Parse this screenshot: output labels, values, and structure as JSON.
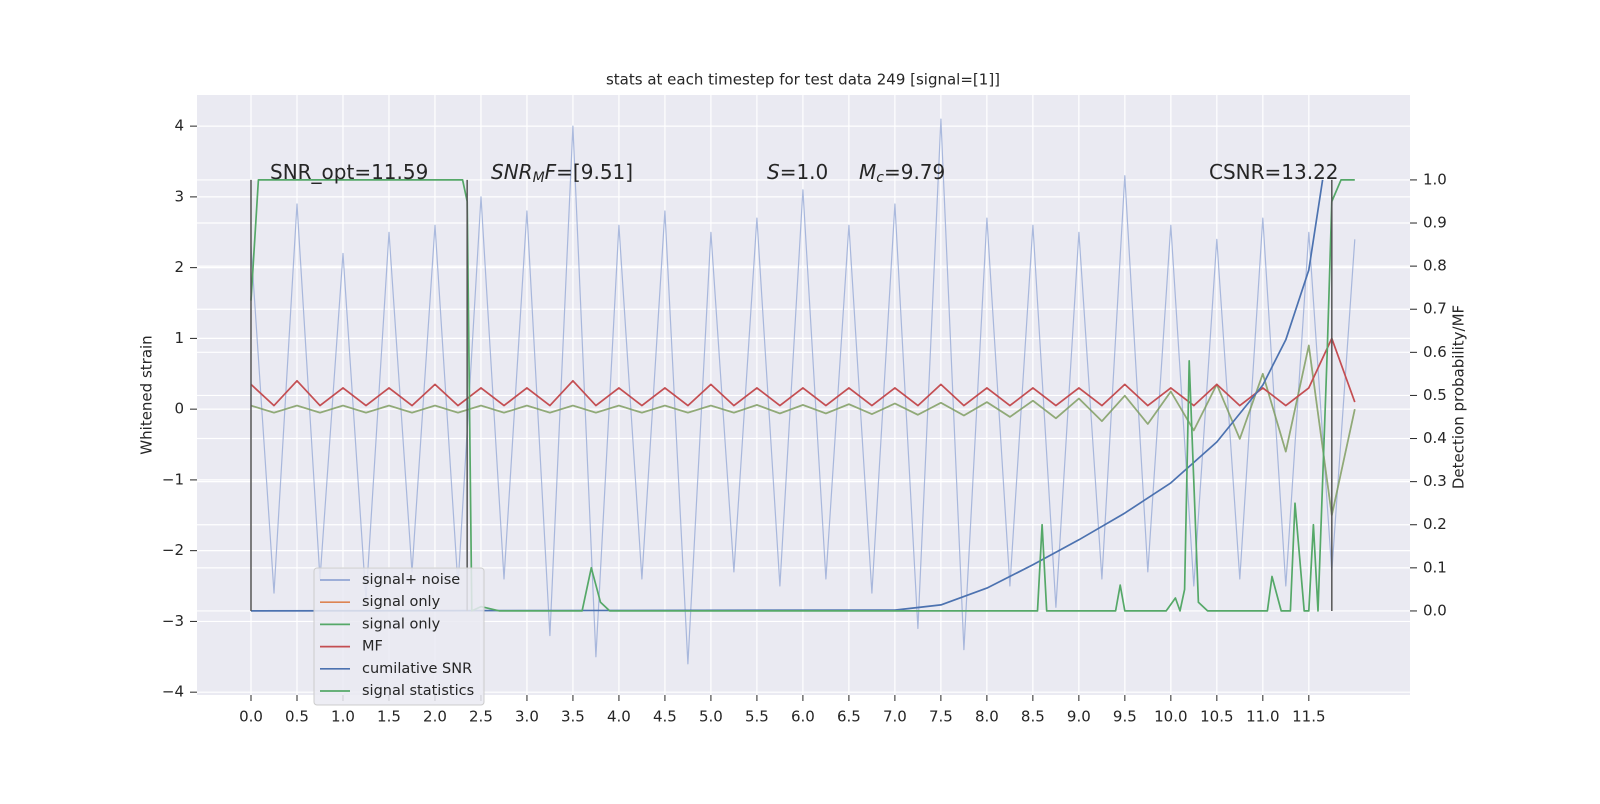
{
  "chart_data": {
    "type": "line",
    "title": "stats at each timestep for test data 249 [signal=[1]]",
    "ylabel": "Whitened strain",
    "y2label": "Detection probability/MF",
    "xlim": [
      -0.587,
      12.6
    ],
    "ylim": [
      -4.04,
      4.44
    ],
    "y2lim": [
      -0.195,
      1.197
    ],
    "grid": true,
    "legend": "lower left",
    "xticks": [
      {
        "value": 0,
        "label": "0.0"
      },
      0.5,
      {
        "value": 1,
        "label": "1.0"
      },
      1.5,
      {
        "value": 2,
        "label": "2.0"
      },
      2.5,
      {
        "value": 3,
        "label": "3.0"
      },
      3.5,
      {
        "value": 4,
        "label": "4.0"
      },
      4.5,
      {
        "value": 5,
        "label": "5.0"
      },
      5.5,
      {
        "value": 6,
        "label": "6.0"
      },
      6.5,
      {
        "value": 7,
        "label": "7.0"
      },
      7.5,
      {
        "value": 8,
        "label": "8.0"
      },
      8.5,
      {
        "value": 9,
        "label": "9.0"
      },
      9.5,
      {
        "value": 10,
        "label": "10.0"
      },
      10.5,
      {
        "value": 11,
        "label": "11.0"
      },
      11.5
    ],
    "yticks": [
      {
        "value": -4,
        "label": "−4"
      },
      {
        "value": -3,
        "label": "−3"
      },
      {
        "value": -2,
        "label": "−2"
      },
      {
        "value": -1,
        "label": "−1"
      },
      0,
      1,
      2,
      3,
      4
    ],
    "y2ticks": [
      {
        "value": 0,
        "label": "0.0"
      },
      0.1,
      0.2,
      0.3,
      0.4,
      0.5,
      0.6,
      0.7,
      0.8,
      0.9,
      {
        "value": 1,
        "label": "1.0"
      }
    ],
    "vlines": {
      "color": "#555555",
      "x": [
        0,
        2.35,
        11.75
      ]
    },
    "annotations": [
      {
        "parts": [
          {
            "text": "SNR_opt=11.59"
          }
        ]
      },
      {
        "parts": [
          {
            "text": "SNR",
            "italic": true
          },
          {
            "text": "M",
            "italic": true,
            "sub": true
          },
          {
            "text": "F",
            "italic": true
          },
          {
            "text": "=[9.51]"
          }
        ]
      },
      {
        "parts": [
          {
            "text": "S",
            "italic": true
          },
          {
            "text": "=1.0"
          }
        ]
      },
      {
        "parts": [
          {
            "text": "M",
            "italic": true
          },
          {
            "text": "c",
            "italic": true,
            "sub": true
          },
          {
            "text": "=9.79"
          }
        ]
      },
      {
        "parts": [
          {
            "text": "CSNR=13.22"
          }
        ]
      }
    ],
    "series": [
      {
        "name": "signal+ noise",
        "color": "#92a6d4",
        "x": [
          0,
          0.25,
          0.5,
          0.75,
          1,
          1.25,
          1.5,
          1.75,
          2,
          2.25,
          2.5,
          2.75,
          3,
          3.25,
          3.5,
          3.75,
          4,
          4.25,
          4.5,
          4.75,
          5,
          5.25,
          5.5,
          5.75,
          6,
          6.25,
          6.5,
          6.75,
          7,
          7.25,
          7.5,
          7.75,
          8,
          8.25,
          8.5,
          8.75,
          9,
          9.25,
          9.5,
          9.75,
          10,
          10.25,
          10.5,
          10.75,
          11,
          11.25,
          11.5,
          11.75,
          12
        ],
        "values": [
          2.3,
          -2.6,
          2.9,
          -2.4,
          2.2,
          -2.7,
          2.5,
          -2.3,
          2.6,
          -2.5,
          3.0,
          -2.4,
          2.8,
          -3.2,
          4.0,
          -3.5,
          2.6,
          -2.4,
          2.8,
          -3.6,
          2.5,
          -2.3,
          2.7,
          -2.5,
          3.1,
          -2.4,
          2.6,
          -2.6,
          2.9,
          -3.1,
          4.1,
          -3.4,
          2.7,
          -2.5,
          2.6,
          -2.8,
          2.5,
          -2.4,
          3.3,
          -2.3,
          2.6,
          -2.5,
          2.4,
          -2.4,
          2.7,
          -2.5,
          2.5,
          -2.3,
          2.4
        ]
      },
      {
        "name": "signal only",
        "color": "#dd8452",
        "x": [
          0,
          0.25,
          0.5,
          0.75,
          1,
          1.25,
          1.5,
          1.75,
          2,
          2.25,
          2.5,
          2.75,
          3,
          3.25,
          3.5,
          3.75,
          4,
          4.25,
          4.5,
          4.75,
          5,
          5.25,
          5.5,
          5.75,
          6,
          6.25,
          6.5,
          6.75,
          7,
          7.25,
          7.5,
          7.75,
          8,
          8.25,
          8.5,
          8.75,
          9,
          9.25,
          9.5,
          9.75,
          10,
          10.25,
          10.5,
          10.75,
          11,
          11.25,
          11.5,
          11.75,
          12
        ],
        "values": [
          0.05,
          -0.05,
          0.05,
          -0.05,
          0.05,
          -0.05,
          0.05,
          -0.05,
          0.05,
          -0.05,
          0.05,
          -0.05,
          0.05,
          -0.05,
          0.05,
          -0.05,
          0.05,
          -0.05,
          0.05,
          -0.05,
          0.05,
          -0.05,
          0.06,
          -0.06,
          0.06,
          -0.06,
          0.07,
          -0.07,
          0.08,
          -0.08,
          0.09,
          -0.09,
          0.1,
          -0.11,
          0.12,
          -0.13,
          0.15,
          -0.17,
          0.19,
          -0.21,
          0.25,
          -0.3,
          0.35,
          -0.42,
          0.5,
          -0.6,
          0.9,
          -1.5,
          0
        ]
      },
      {
        "name": "signal only",
        "color": "#55a868",
        "x": [
          0,
          0.25,
          0.5,
          0.75,
          1,
          1.25,
          1.5,
          1.75,
          2,
          2.25,
          2.5,
          2.75,
          3,
          3.25,
          3.5,
          3.75,
          4,
          4.25,
          4.5,
          4.75,
          5,
          5.25,
          5.5,
          5.75,
          6,
          6.25,
          6.5,
          6.75,
          7,
          7.25,
          7.5,
          7.75,
          8,
          8.25,
          8.5,
          8.75,
          9,
          9.25,
          9.5,
          9.75,
          10,
          10.25,
          10.5,
          10.75,
          11,
          11.25,
          11.5,
          11.75,
          12
        ],
        "values": [
          0.05,
          -0.05,
          0.05,
          -0.05,
          0.05,
          -0.05,
          0.05,
          -0.05,
          0.05,
          -0.05,
          0.05,
          -0.05,
          0.05,
          -0.05,
          0.05,
          -0.05,
          0.05,
          -0.05,
          0.05,
          -0.05,
          0.05,
          -0.05,
          0.06,
          -0.06,
          0.06,
          -0.06,
          0.07,
          -0.07,
          0.08,
          -0.08,
          0.09,
          -0.09,
          0.1,
          -0.11,
          0.12,
          -0.13,
          0.15,
          -0.17,
          0.19,
          -0.21,
          0.25,
          -0.3,
          0.35,
          -0.42,
          0.5,
          -0.6,
          0.9,
          -1.5,
          0
        ]
      },
      {
        "name": "MF",
        "color": "#c44e52",
        "x": [
          0,
          0.25,
          0.5,
          0.75,
          1,
          1.25,
          1.5,
          1.75,
          2,
          2.25,
          2.5,
          2.75,
          3,
          3.25,
          3.5,
          3.75,
          4,
          4.25,
          4.5,
          4.75,
          5,
          5.25,
          5.5,
          5.75,
          6,
          6.25,
          6.5,
          6.75,
          7,
          7.25,
          7.5,
          7.75,
          8,
          8.25,
          8.5,
          8.75,
          9,
          9.25,
          9.5,
          9.75,
          10,
          10.25,
          10.5,
          10.75,
          11,
          11.25,
          11.5,
          11.75,
          12
        ],
        "values": [
          0.35,
          0.05,
          0.4,
          0.05,
          0.3,
          0.05,
          0.3,
          0.05,
          0.35,
          0.05,
          0.3,
          0.05,
          0.3,
          0.05,
          0.4,
          0.05,
          0.3,
          0.05,
          0.3,
          0.05,
          0.35,
          0.05,
          0.3,
          0.05,
          0.3,
          0.05,
          0.3,
          0.05,
          0.3,
          0.05,
          0.35,
          0.05,
          0.3,
          0.05,
          0.3,
          0.05,
          0.3,
          0.05,
          0.35,
          0.05,
          0.3,
          0.05,
          0.35,
          0.05,
          0.3,
          0.05,
          0.3,
          1.0,
          0.1
        ]
      },
      {
        "name": "cumilative SNR",
        "color": "#4c72b0",
        "axis": "y2",
        "x": [
          0,
          7.0,
          7.5,
          8.0,
          8.5,
          9.0,
          9.5,
          10.0,
          10.5,
          11.0,
          11.25,
          11.5,
          11.65
        ],
        "values": [
          0,
          0.002,
          0.014,
          0.053,
          0.107,
          0.165,
          0.227,
          0.297,
          0.392,
          0.524,
          0.629,
          0.791,
          1.0
        ]
      },
      {
        "name": "signal statistics",
        "color": "#55a868",
        "axis": "y2",
        "x": [
          0,
          0.08,
          2.3,
          2.35,
          2.4,
          2.5,
          2.7,
          3.6,
          3.7,
          3.8,
          3.9,
          8.55,
          8.6,
          8.65,
          9.4,
          9.45,
          9.5,
          9.95,
          10.05,
          10.1,
          10.15,
          10.2,
          10.3,
          10.4,
          11.05,
          11.1,
          11.2,
          11.3,
          11.35,
          11.45,
          11.5,
          11.55,
          11.6,
          11.7,
          11.75,
          11.85,
          12.0
        ],
        "values": [
          0.72,
          1.0,
          1.0,
          0.95,
          0.0,
          0.01,
          0.0,
          0.0,
          0.1,
          0.02,
          0.0,
          0.0,
          0.2,
          0.0,
          0.0,
          0.06,
          0.0,
          0.0,
          0.03,
          0.0,
          0.05,
          0.58,
          0.02,
          0.0,
          0.0,
          0.08,
          0.0,
          0.0,
          0.25,
          0.0,
          0.0,
          0.2,
          0.0,
          0.6,
          0.95,
          1.0,
          1.0
        ]
      }
    ]
  }
}
